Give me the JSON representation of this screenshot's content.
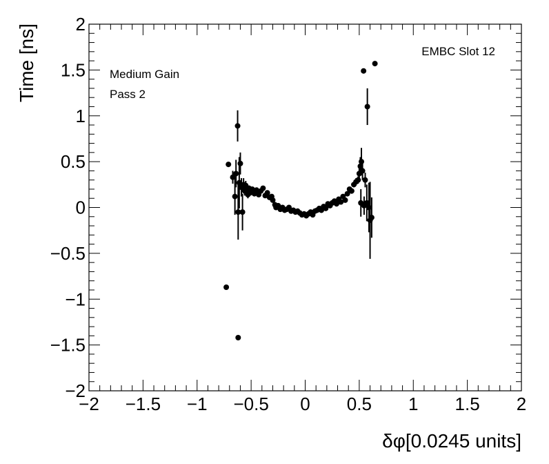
{
  "chart_data": {
    "type": "scatter",
    "title": "",
    "xlabel": "δφ[0.0245 units]",
    "ylabel": "Time [ns]",
    "xlim": [
      -2,
      2
    ],
    "ylim": [
      -2,
      2
    ],
    "x_ticks": [
      -2,
      -1.5,
      -1,
      -0.5,
      0,
      0.5,
      1,
      1.5,
      2
    ],
    "y_ticks": [
      -2,
      -1.5,
      -1,
      -0.5,
      0,
      0.5,
      1,
      1.5,
      2
    ],
    "x_tick_labels": [
      "−2",
      "−1.5",
      "−1",
      "−0.5",
      "0",
      "0.5",
      "1",
      "1.5",
      "2"
    ],
    "y_tick_labels": [
      "−2",
      "−1.5",
      "−1",
      "−0.5",
      "0",
      "0.5",
      "1",
      "1.5",
      "2"
    ],
    "grid": false,
    "annotations": {
      "top_right": "EMBC Slot 12",
      "top_left_line1": "Medium Gain",
      "top_left_line2": "Pass 2"
    },
    "series": [
      {
        "marker_color": "#000000",
        "points": [
          {
            "x": -0.73,
            "y": -0.87,
            "err": 0.0
          },
          {
            "x": -0.71,
            "y": 0.47,
            "err": 0.0
          },
          {
            "x": -0.62,
            "y": -1.42,
            "err": 0.0
          },
          {
            "x": -0.67,
            "y": 0.33,
            "err": 0.07
          },
          {
            "x": -0.65,
            "y": 0.12,
            "err": 0.2
          },
          {
            "x": -0.64,
            "y": 0.37,
            "err": 0.15
          },
          {
            "x": -0.625,
            "y": 0.89,
            "err": 0.17
          },
          {
            "x": -0.62,
            "y": -0.05,
            "err": 0.3
          },
          {
            "x": -0.61,
            "y": 0.27,
            "err": 0.28
          },
          {
            "x": -0.6,
            "y": 0.48,
            "err": 0.12
          },
          {
            "x": -0.59,
            "y": 0.22,
            "err": 0.1
          },
          {
            "x": -0.58,
            "y": -0.05,
            "err": 0.2
          },
          {
            "x": -0.57,
            "y": 0.25,
            "err": 0.07
          },
          {
            "x": -0.56,
            "y": 0.18,
            "err": 0.05
          },
          {
            "x": -0.55,
            "y": 0.24,
            "err": 0.05
          },
          {
            "x": -0.54,
            "y": 0.2,
            "err": 0.05
          },
          {
            "x": -0.53,
            "y": 0.14,
            "err": 0.04
          },
          {
            "x": -0.52,
            "y": 0.21,
            "err": 0.03
          },
          {
            "x": -0.51,
            "y": 0.16,
            "err": 0.03
          },
          {
            "x": -0.49,
            "y": 0.2,
            "err": 0.02
          },
          {
            "x": -0.47,
            "y": 0.15,
            "err": 0.02
          },
          {
            "x": -0.45,
            "y": 0.19,
            "err": 0.02
          },
          {
            "x": -0.43,
            "y": 0.14,
            "err": 0.02
          },
          {
            "x": -0.41,
            "y": 0.18,
            "err": 0.02
          },
          {
            "x": -0.39,
            "y": 0.21,
            "err": 0.02
          },
          {
            "x": -0.37,
            "y": 0.13,
            "err": 0.02
          },
          {
            "x": -0.35,
            "y": 0.16,
            "err": 0.02
          },
          {
            "x": -0.33,
            "y": 0.11,
            "err": 0.02
          },
          {
            "x": -0.31,
            "y": 0.12,
            "err": 0.02
          },
          {
            "x": -0.3,
            "y": 0.08,
            "err": 0.02
          },
          {
            "x": -0.28,
            "y": 0.03,
            "err": 0.02
          },
          {
            "x": -0.27,
            "y": 0.0,
            "err": 0.02
          },
          {
            "x": -0.25,
            "y": 0.02,
            "err": 0.02
          },
          {
            "x": -0.23,
            "y": -0.02,
            "err": 0.02
          },
          {
            "x": -0.21,
            "y": 0.0,
            "err": 0.02
          },
          {
            "x": -0.19,
            "y": -0.03,
            "err": 0.02
          },
          {
            "x": -0.17,
            "y": -0.02,
            "err": 0.02
          },
          {
            "x": -0.15,
            "y": 0.0,
            "err": 0.02
          },
          {
            "x": -0.13,
            "y": -0.04,
            "err": 0.02
          },
          {
            "x": -0.11,
            "y": -0.03,
            "err": 0.02
          },
          {
            "x": -0.09,
            "y": -0.05,
            "err": 0.02
          },
          {
            "x": -0.07,
            "y": -0.04,
            "err": 0.02
          },
          {
            "x": -0.05,
            "y": -0.06,
            "err": 0.02
          },
          {
            "x": -0.03,
            "y": -0.08,
            "err": 0.02
          },
          {
            "x": -0.01,
            "y": -0.07,
            "err": 0.02
          },
          {
            "x": 0.01,
            "y": -0.09,
            "err": 0.02
          },
          {
            "x": 0.03,
            "y": -0.07,
            "err": 0.02
          },
          {
            "x": 0.05,
            "y": -0.05,
            "err": 0.02
          },
          {
            "x": 0.07,
            "y": -0.08,
            "err": 0.02
          },
          {
            "x": 0.09,
            "y": -0.04,
            "err": 0.02
          },
          {
            "x": 0.11,
            "y": -0.03,
            "err": 0.02
          },
          {
            "x": 0.13,
            "y": -0.01,
            "err": 0.02
          },
          {
            "x": 0.15,
            "y": -0.03,
            "err": 0.02
          },
          {
            "x": 0.17,
            "y": 0.01,
            "err": 0.02
          },
          {
            "x": 0.19,
            "y": -0.01,
            "err": 0.02
          },
          {
            "x": 0.21,
            "y": 0.04,
            "err": 0.02
          },
          {
            "x": 0.23,
            "y": 0.02,
            "err": 0.02
          },
          {
            "x": 0.25,
            "y": 0.05,
            "err": 0.02
          },
          {
            "x": 0.27,
            "y": 0.07,
            "err": 0.02
          },
          {
            "x": 0.29,
            "y": 0.04,
            "err": 0.02
          },
          {
            "x": 0.31,
            "y": 0.09,
            "err": 0.02
          },
          {
            "x": 0.33,
            "y": 0.06,
            "err": 0.02
          },
          {
            "x": 0.35,
            "y": 0.12,
            "err": 0.02
          },
          {
            "x": 0.37,
            "y": 0.08,
            "err": 0.02
          },
          {
            "x": 0.39,
            "y": 0.15,
            "err": 0.02
          },
          {
            "x": 0.41,
            "y": 0.2,
            "err": 0.02
          },
          {
            "x": 0.43,
            "y": 0.18,
            "err": 0.03
          },
          {
            "x": 0.45,
            "y": 0.25,
            "err": 0.03
          },
          {
            "x": 0.47,
            "y": 0.28,
            "err": 0.04
          },
          {
            "x": 0.49,
            "y": 0.3,
            "err": 0.04
          },
          {
            "x": 0.5,
            "y": 0.37,
            "err": 0.06
          },
          {
            "x": 0.51,
            "y": 0.45,
            "err": 0.1
          },
          {
            "x": 0.515,
            "y": 0.05,
            "err": 0.15
          },
          {
            "x": 0.52,
            "y": 0.5,
            "err": 0.15
          },
          {
            "x": 0.53,
            "y": 0.4,
            "err": 0.1
          },
          {
            "x": 0.54,
            "y": 1.49,
            "err": 0.0
          },
          {
            "x": 0.545,
            "y": 0.02,
            "err": 0.1
          },
          {
            "x": 0.555,
            "y": 0.3,
            "err": 0.08
          },
          {
            "x": 0.57,
            "y": 0.05,
            "err": 0.2
          },
          {
            "x": 0.575,
            "y": 1.1,
            "err": 0.2
          },
          {
            "x": 0.59,
            "y": 0.0,
            "err": 0.27
          },
          {
            "x": 0.6,
            "y": -0.14,
            "err": 0.42
          },
          {
            "x": 0.615,
            "y": -0.11,
            "err": 0.22
          },
          {
            "x": 0.645,
            "y": 1.57,
            "err": 0.0
          }
        ]
      }
    ]
  }
}
